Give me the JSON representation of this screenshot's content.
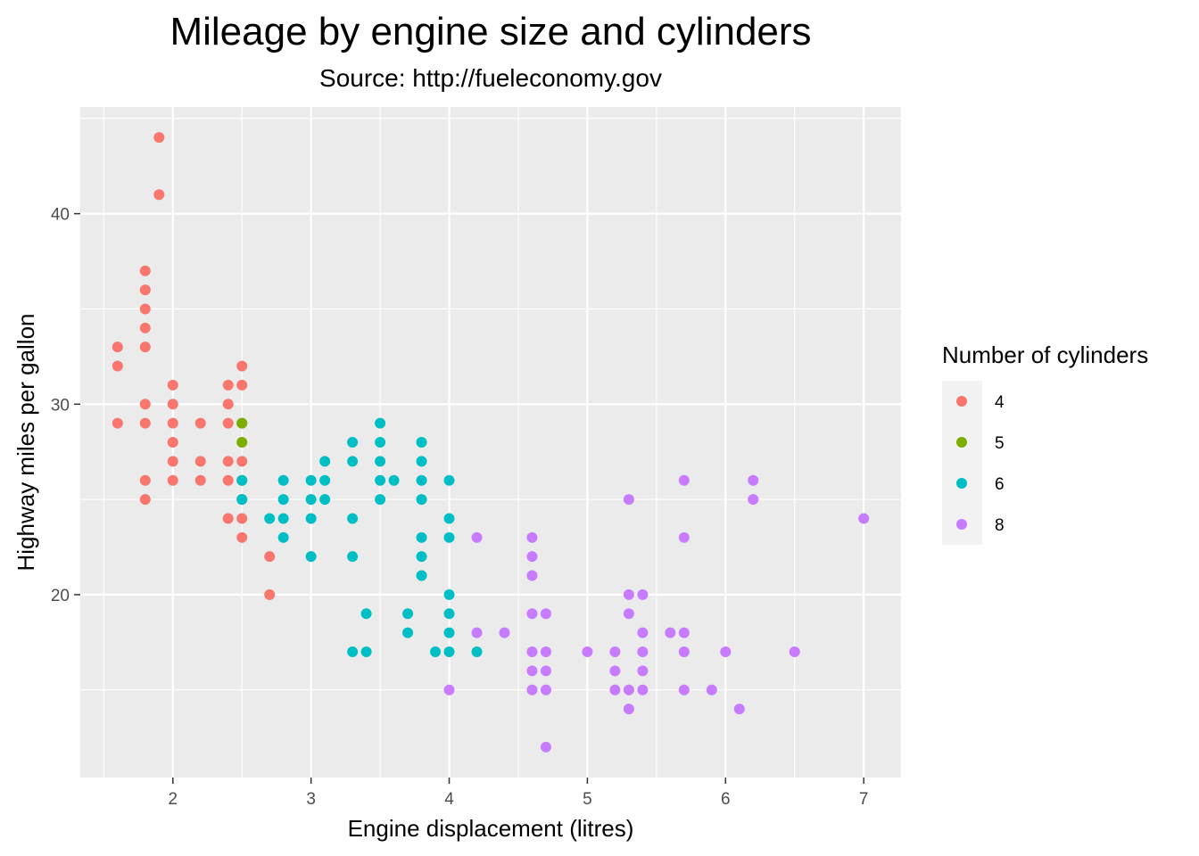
{
  "chart_data": {
    "type": "scatter",
    "title": "Mileage by engine size and cylinders",
    "subtitle": "Source: http://fueleconomy.gov",
    "xlabel": "Engine displacement (litres)",
    "ylabel": "Highway miles per gallon",
    "xlim": [
      1.33,
      7.27
    ],
    "ylim": [
      10.4,
      45.6
    ],
    "x_ticks": [
      "2",
      "3",
      "4",
      "5",
      "6",
      "7"
    ],
    "y_ticks": [
      "20",
      "30",
      "40"
    ],
    "grid": true,
    "legend": {
      "title": "Number of cylinders",
      "position": "right",
      "entries": [
        {
          "label": "4",
          "color": "#F8766D"
        },
        {
          "label": "5",
          "color": "#7CAE00"
        },
        {
          "label": "6",
          "color": "#00BFC4"
        },
        {
          "label": "8",
          "color": "#C77CFF"
        }
      ]
    },
    "series": [
      {
        "name": "4",
        "color": "#F8766D",
        "points": [
          [
            1.6,
            33
          ],
          [
            1.6,
            32
          ],
          [
            1.6,
            29
          ],
          [
            1.8,
            37
          ],
          [
            1.8,
            36
          ],
          [
            1.8,
            35
          ],
          [
            1.8,
            34
          ],
          [
            1.8,
            33
          ],
          [
            1.8,
            30
          ],
          [
            1.8,
            29
          ],
          [
            1.8,
            26
          ],
          [
            1.8,
            25
          ],
          [
            1.9,
            44
          ],
          [
            1.9,
            41
          ],
          [
            2.0,
            31
          ],
          [
            2.0,
            30
          ],
          [
            2.0,
            29
          ],
          [
            2.0,
            28
          ],
          [
            2.0,
            27
          ],
          [
            2.0,
            26
          ],
          [
            2.2,
            29
          ],
          [
            2.2,
            27
          ],
          [
            2.2,
            26
          ],
          [
            2.4,
            31
          ],
          [
            2.4,
            30
          ],
          [
            2.4,
            29
          ],
          [
            2.4,
            27
          ],
          [
            2.4,
            26
          ],
          [
            2.4,
            24
          ],
          [
            2.5,
            32
          ],
          [
            2.5,
            31
          ],
          [
            2.5,
            29
          ],
          [
            2.5,
            27
          ],
          [
            2.5,
            26
          ],
          [
            2.5,
            25
          ],
          [
            2.5,
            24
          ],
          [
            2.5,
            23
          ],
          [
            2.7,
            22
          ],
          [
            2.7,
            20
          ]
        ]
      },
      {
        "name": "5",
        "color": "#7CAE00",
        "points": [
          [
            2.5,
            29
          ],
          [
            2.5,
            28
          ]
        ]
      },
      {
        "name": "6",
        "color": "#00BFC4",
        "points": [
          [
            2.5,
            26
          ],
          [
            2.5,
            25
          ],
          [
            2.7,
            24
          ],
          [
            2.8,
            26
          ],
          [
            2.8,
            25
          ],
          [
            2.8,
            24
          ],
          [
            2.8,
            23
          ],
          [
            3.0,
            26
          ],
          [
            3.0,
            25
          ],
          [
            3.0,
            24
          ],
          [
            3.0,
            22
          ],
          [
            3.1,
            27
          ],
          [
            3.1,
            26
          ],
          [
            3.1,
            25
          ],
          [
            3.3,
            28
          ],
          [
            3.3,
            27
          ],
          [
            3.3,
            24
          ],
          [
            3.3,
            22
          ],
          [
            3.3,
            17
          ],
          [
            3.4,
            19
          ],
          [
            3.4,
            17
          ],
          [
            3.5,
            29
          ],
          [
            3.5,
            28
          ],
          [
            3.5,
            27
          ],
          [
            3.5,
            26
          ],
          [
            3.5,
            25
          ],
          [
            3.6,
            26
          ],
          [
            3.7,
            19
          ],
          [
            3.7,
            18
          ],
          [
            3.8,
            28
          ],
          [
            3.8,
            27
          ],
          [
            3.8,
            26
          ],
          [
            3.8,
            25
          ],
          [
            3.8,
            23
          ],
          [
            3.8,
            22
          ],
          [
            3.8,
            21
          ],
          [
            3.9,
            17
          ],
          [
            4.0,
            26
          ],
          [
            4.0,
            24
          ],
          [
            4.0,
            23
          ],
          [
            4.0,
            20
          ],
          [
            4.0,
            19
          ],
          [
            4.0,
            18
          ],
          [
            4.0,
            17
          ],
          [
            4.2,
            17
          ]
        ]
      },
      {
        "name": "8",
        "color": "#C77CFF",
        "points": [
          [
            4.0,
            15
          ],
          [
            4.2,
            23
          ],
          [
            4.2,
            18
          ],
          [
            4.4,
            18
          ],
          [
            4.6,
            23
          ],
          [
            4.6,
            22
          ],
          [
            4.6,
            21
          ],
          [
            4.6,
            19
          ],
          [
            4.6,
            17
          ],
          [
            4.6,
            16
          ],
          [
            4.6,
            15
          ],
          [
            4.7,
            19
          ],
          [
            4.7,
            17
          ],
          [
            4.7,
            16
          ],
          [
            4.7,
            15
          ],
          [
            4.7,
            12
          ],
          [
            5.0,
            17
          ],
          [
            5.2,
            17
          ],
          [
            5.2,
            16
          ],
          [
            5.2,
            15
          ],
          [
            5.3,
            25
          ],
          [
            5.3,
            20
          ],
          [
            5.3,
            19
          ],
          [
            5.3,
            15
          ],
          [
            5.3,
            14
          ],
          [
            5.4,
            20
          ],
          [
            5.4,
            18
          ],
          [
            5.4,
            17
          ],
          [
            5.4,
            16
          ],
          [
            5.4,
            15
          ],
          [
            5.6,
            18
          ],
          [
            5.7,
            26
          ],
          [
            5.7,
            23
          ],
          [
            5.7,
            18
          ],
          [
            5.7,
            17
          ],
          [
            5.7,
            15
          ],
          [
            5.9,
            15
          ],
          [
            6.0,
            17
          ],
          [
            6.1,
            14
          ],
          [
            6.2,
            26
          ],
          [
            6.2,
            25
          ],
          [
            6.5,
            17
          ],
          [
            7.0,
            24
          ]
        ]
      }
    ]
  }
}
